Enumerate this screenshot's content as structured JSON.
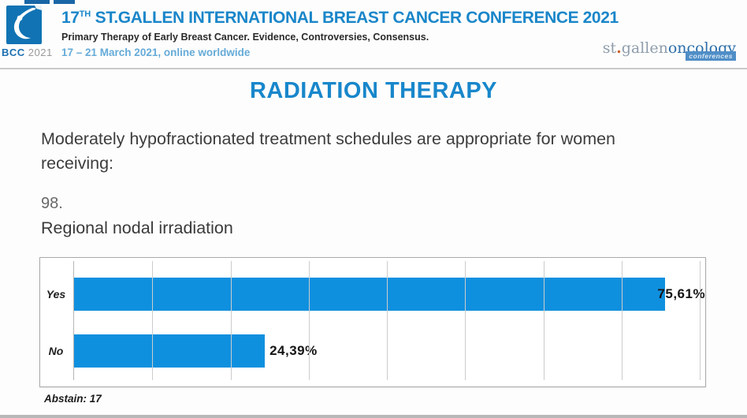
{
  "header": {
    "logo_badge": {
      "bcc": "BCC",
      "year": "2021"
    },
    "title": {
      "prefix": "17",
      "sup": "TH",
      "rest": " ST.GALLEN INTERNATIONAL BREAST CANCER CONFERENCE 2021"
    },
    "subtitle": "Primary Therapy of Early Breast Cancer. Evidence, Controversies, Consensus.",
    "dates": "17 – 21 March 2021, online worldwide",
    "org_logo": {
      "st": "st",
      "dot": ".",
      "gallen": "gallen",
      "oncology": "oncology",
      "badge": "conferences"
    }
  },
  "slide": {
    "section_title": "RADIATION THERAPY",
    "question": "Moderately hypofractionated treatment schedules are appropriate for women receiving:",
    "question_number": "98.",
    "answer_subject": "Regional nodal irradiation",
    "abstain_label": "Abstain: 17"
  },
  "chart_data": {
    "type": "bar",
    "orientation": "horizontal",
    "title": "Regional nodal irradiation",
    "categories": [
      "Yes",
      "No"
    ],
    "values": [
      75.61,
      24.39
    ],
    "value_labels": [
      "75,61%",
      "24,39%"
    ],
    "xlim": [
      0,
      80
    ],
    "gridline_interval": 10,
    "grid": true,
    "legend": false,
    "abstain": 17
  },
  "colors": {
    "accent_blue": "#1a86c9",
    "dates_blue": "#66abd8",
    "bar_blue": "#0f90df",
    "logo_blue": "#1173b4",
    "orange_dot": "#cc5f2a"
  }
}
